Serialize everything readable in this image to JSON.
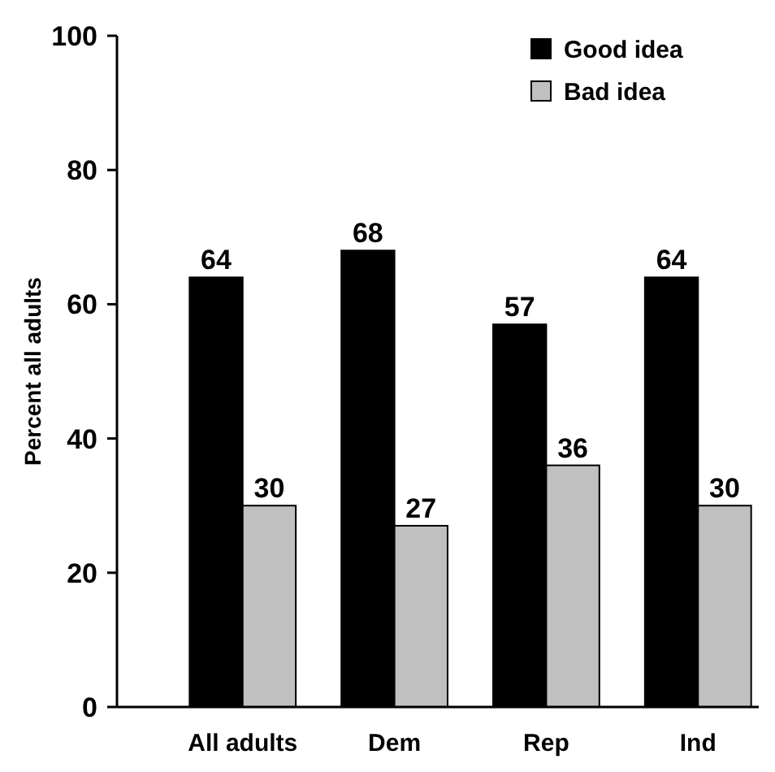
{
  "chart_data": {
    "type": "bar",
    "ylabel": "Percent all adults",
    "categories": [
      "All adults",
      "Dem",
      "Rep",
      "Ind"
    ],
    "series": [
      {
        "name": "Good idea",
        "color": "#000000",
        "values": [
          64,
          68,
          57,
          64
        ]
      },
      {
        "name": "Bad idea",
        "color": "#c0c0c0",
        "values": [
          30,
          27,
          36,
          30
        ]
      }
    ],
    "ylim": [
      0,
      100
    ],
    "yticks": [
      0,
      20,
      40,
      60,
      80,
      100
    ],
    "grid": false,
    "legend": "top right",
    "data_labels": true
  }
}
